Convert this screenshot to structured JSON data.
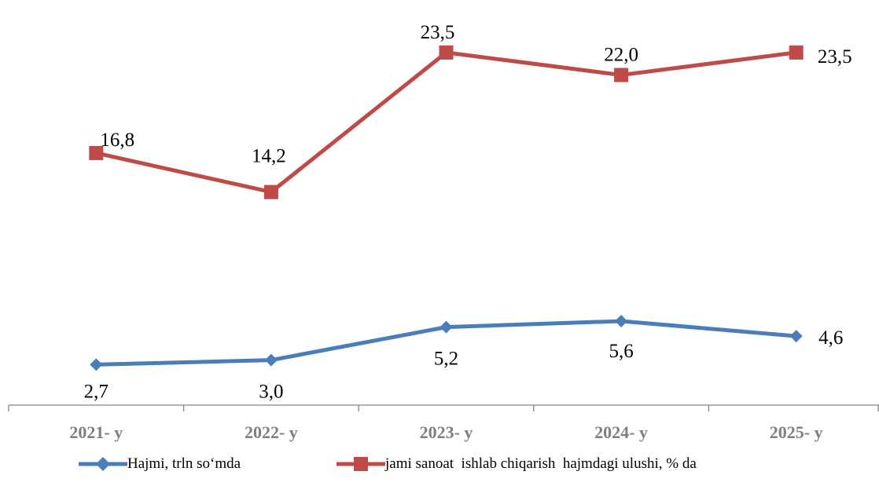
{
  "chart_data": {
    "type": "line",
    "categories": [
      "2021- y",
      "2022- y",
      "2023- y",
      "2024- y",
      "2025- y"
    ],
    "series": [
      {
        "name": "Hajmi, trln so‘mda",
        "values": [
          2.7,
          3.0,
          5.2,
          5.6,
          4.6
        ],
        "labels": [
          "2,7",
          "3,0",
          "5,2",
          "5,6",
          "4,6"
        ],
        "color": "#4a7ebb",
        "marker": "diamond"
      },
      {
        "name": "jami sanoat  ishlab chiqarish  hajmdagi ulushi, % da",
        "values": [
          16.8,
          14.2,
          23.5,
          22.0,
          23.5
        ],
        "labels": [
          "16,8",
          "14,2",
          "23,5",
          "22,0",
          "23,5"
        ],
        "color": "#be4b48",
        "marker": "square"
      }
    ],
    "ylim": [
      0,
      27
    ],
    "grid": false,
    "legend_position": "bottom",
    "axis_color": "#868686",
    "tick_label_color": "#7f7f7f"
  }
}
